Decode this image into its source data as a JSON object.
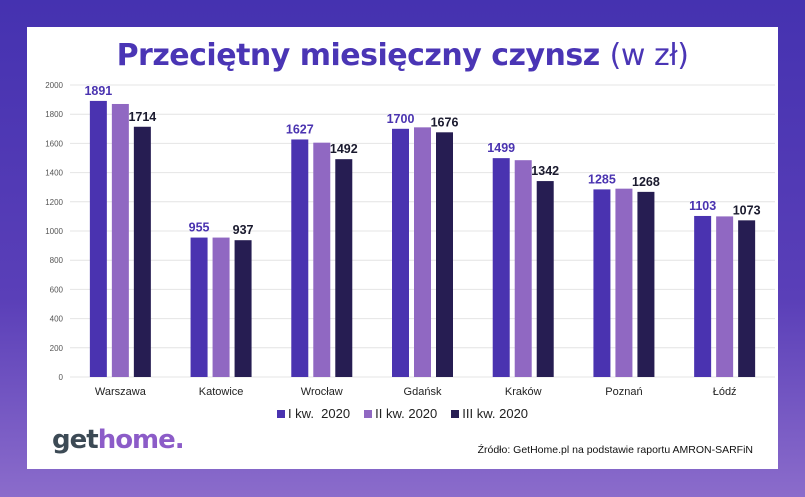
{
  "chart_data": {
    "type": "bar",
    "title": "Przeciętny miesięczny czynsz",
    "title_unit": "(w zł)",
    "categories": [
      "Warszawa",
      "Katowice",
      "Wrocław",
      "Gdańsk",
      "Kraków",
      "Poznań",
      "Łódź"
    ],
    "series": [
      {
        "name": "I kw.  2020",
        "color": "#4a33b0",
        "values": [
          1891,
          955,
          1627,
          1700,
          1499,
          1285,
          1103
        ],
        "labels": true,
        "label_color": "#4a33b0"
      },
      {
        "name": "II kw. 2020",
        "color": "#9068c2",
        "values": [
          1870,
          955,
          1605,
          1710,
          1485,
          1290,
          1100
        ],
        "labels": false
      },
      {
        "name": "III kw. 2020",
        "color": "#261d52",
        "values": [
          1714,
          937,
          1492,
          1676,
          1342,
          1268,
          1073
        ],
        "labels": true,
        "label_color": "#1a1a2e"
      }
    ],
    "ylim": [
      0,
      2000
    ],
    "yticks": [
      0,
      200,
      400,
      600,
      800,
      1000,
      1200,
      1400,
      1600,
      1800,
      2000
    ],
    "grid": true,
    "legend": "bottom"
  },
  "logo": {
    "part1": "get",
    "part2": "home."
  },
  "source": "Źródło: GetHome.pl na podstawie raportu AMRON-SARFiN"
}
